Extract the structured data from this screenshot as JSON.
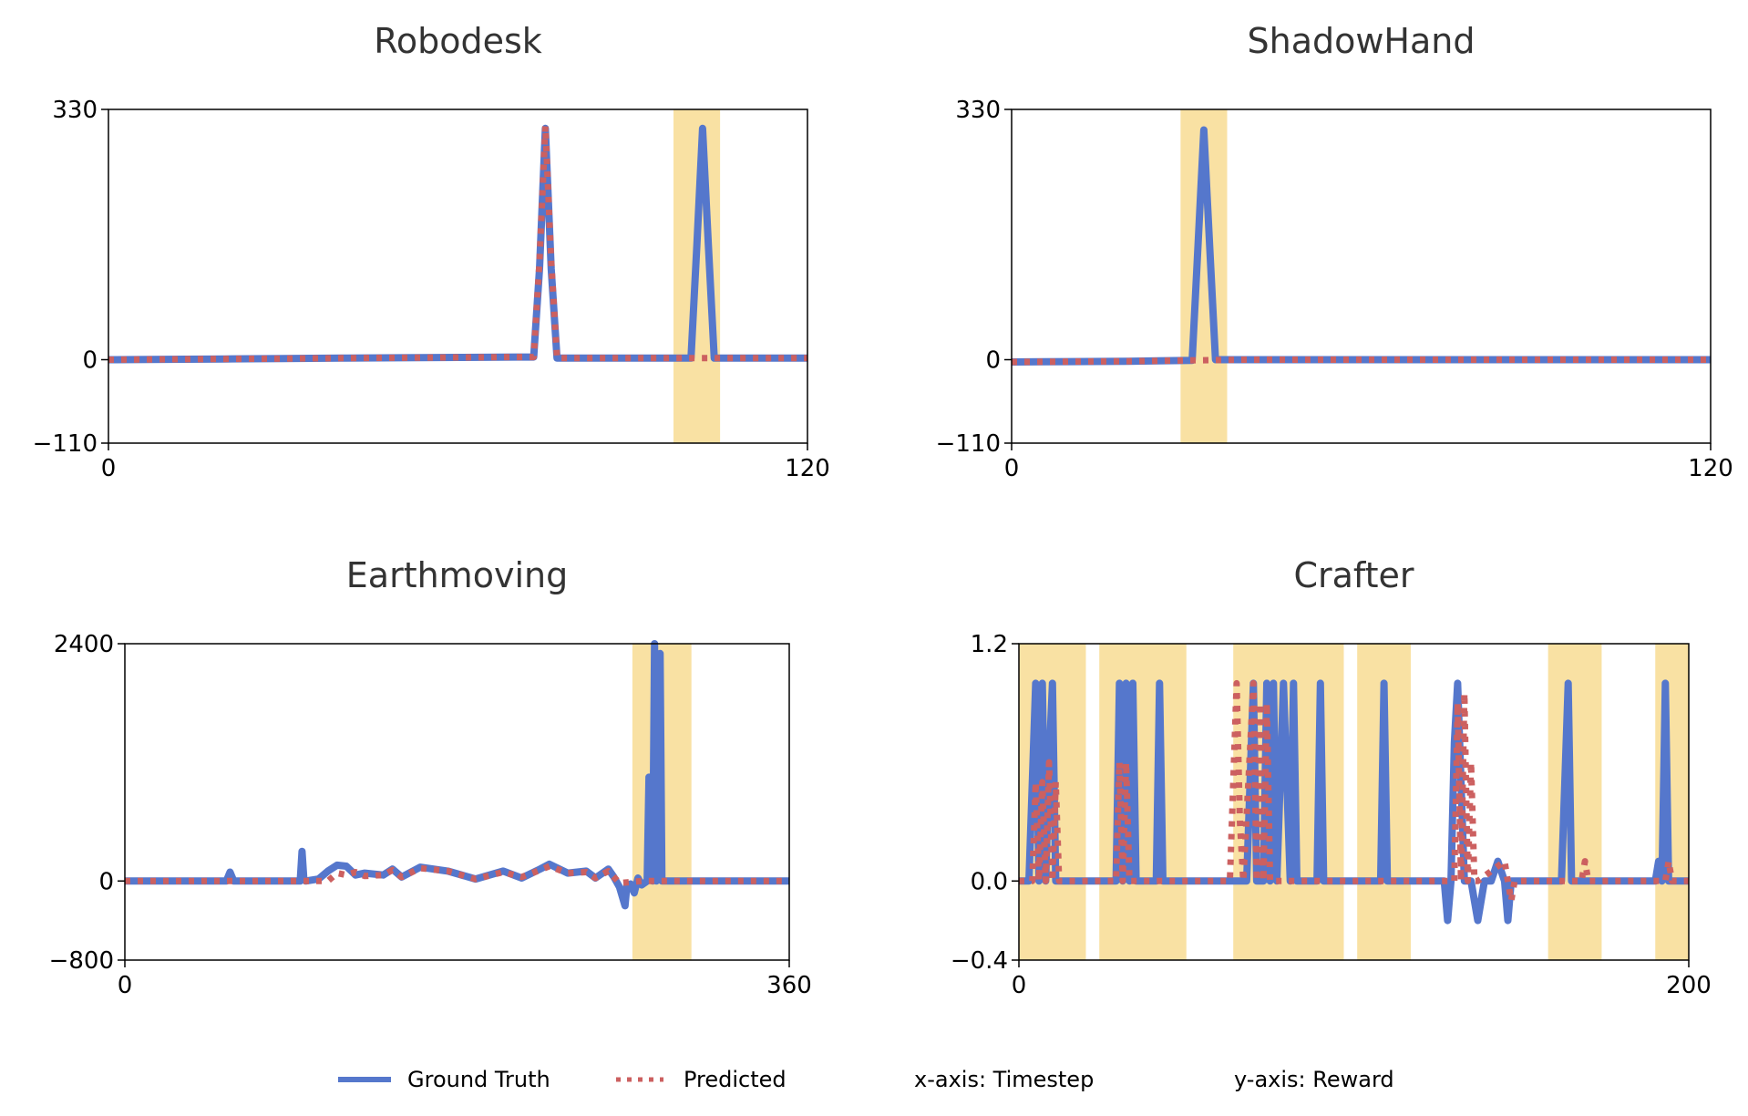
{
  "colors": {
    "ground_truth": "#5577cc",
    "predicted": "#cc6060",
    "highlight": "#f9e1a3",
    "axis": "#000000",
    "title": "#333333"
  },
  "legend": {
    "ground_truth": "Ground Truth",
    "predicted": "Predicted",
    "x_axis_note": "x-axis: Timestep",
    "y_axis_note": "y-axis: Reward"
  },
  "chart_data": [
    {
      "type": "line",
      "title": "Robodesk",
      "xlim": [
        0,
        120
      ],
      "ylim": [
        -110,
        330
      ],
      "xticks": [
        0,
        120
      ],
      "yticks": [
        -110,
        0,
        330
      ],
      "ytick_labels": [
        "−110",
        "0",
        "330"
      ],
      "highlight_spans": [
        [
          97,
          105
        ]
      ],
      "series": [
        {
          "name": "Ground Truth",
          "style": "solid",
          "x": [
            0,
            10,
            20,
            30,
            40,
            50,
            60,
            70,
            73,
            74,
            75,
            76,
            77,
            80,
            90,
            100,
            101,
            102,
            103,
            104,
            110,
            120
          ],
          "y": [
            0,
            0.5,
            1,
            1.5,
            2,
            2.5,
            3,
            3.5,
            3.5,
            120,
            305,
            120,
            2,
            2,
            2,
            2,
            150,
            305,
            150,
            2,
            2,
            2
          ]
        },
        {
          "name": "Predicted",
          "style": "dotted",
          "x": [
            0,
            10,
            20,
            30,
            40,
            50,
            60,
            70,
            73,
            74,
            75,
            76,
            77,
            80,
            90,
            100,
            110,
            120
          ],
          "y": [
            0,
            0.5,
            1,
            1.5,
            2,
            2.5,
            3,
            3.5,
            3.5,
            130,
            308,
            130,
            2,
            2,
            2,
            2,
            2,
            2
          ]
        }
      ]
    },
    {
      "type": "line",
      "title": "ShadowHand",
      "xlim": [
        0,
        120
      ],
      "ylim": [
        -110,
        330
      ],
      "xticks": [
        0,
        120
      ],
      "yticks": [
        -110,
        0,
        330
      ],
      "ytick_labels": [
        "−110",
        "0",
        "330"
      ],
      "highlight_spans": [
        [
          29,
          37
        ]
      ],
      "series": [
        {
          "name": "Ground Truth",
          "style": "solid",
          "x": [
            0,
            10,
            20,
            31,
            32,
            33,
            34,
            35,
            40,
            60,
            80,
            100,
            120
          ],
          "y": [
            -3,
            -2.5,
            -2,
            -1,
            150,
            303,
            150,
            0,
            0,
            0,
            0,
            0,
            0
          ]
        },
        {
          "name": "Predicted",
          "style": "dotted",
          "x": [
            0,
            10,
            20,
            30,
            40,
            60,
            80,
            100,
            120
          ],
          "y": [
            -3,
            -2.5,
            -2,
            -1,
            0,
            0,
            0,
            0,
            0
          ]
        }
      ]
    },
    {
      "type": "line",
      "title": "Earthmoving",
      "xlim": [
        0,
        360
      ],
      "ylim": [
        -800,
        2400
      ],
      "xticks": [
        0,
        360
      ],
      "yticks": [
        -800,
        0,
        2400
      ],
      "ytick_labels": [
        "−800",
        "0",
        "2400"
      ],
      "highlight_spans": [
        [
          275,
          307
        ]
      ],
      "series": [
        {
          "name": "Ground Truth",
          "style": "solid",
          "x": [
            0,
            55,
            57,
            59,
            95,
            96,
            97,
            98,
            105,
            110,
            115,
            120,
            125,
            130,
            140,
            145,
            150,
            160,
            175,
            190,
            205,
            215,
            225,
            230,
            240,
            250,
            255,
            262,
            265,
            268,
            271,
            272,
            274,
            276,
            278,
            280,
            283,
            284,
            286,
            287,
            288,
            290,
            291,
            300,
            310,
            360
          ],
          "y": [
            0,
            0,
            90,
            0,
            0,
            300,
            20,
            0,
            20,
            100,
            160,
            150,
            60,
            80,
            60,
            120,
            40,
            140,
            100,
            20,
            100,
            30,
            120,
            170,
            80,
            100,
            30,
            120,
            40,
            -60,
            -250,
            -50,
            -30,
            -120,
            30,
            -40,
            0,
            1050,
            0,
            2400,
            0,
            2300,
            0,
            0,
            0,
            0
          ]
        },
        {
          "name": "Predicted",
          "style": "dotted",
          "x": [
            0,
            110,
            115,
            120,
            125,
            130,
            140,
            145,
            150,
            160,
            175,
            190,
            205,
            215,
            225,
            230,
            240,
            250,
            255,
            262,
            265,
            268,
            275,
            280,
            290,
            300,
            360
          ],
          "y": [
            0,
            0,
            80,
            60,
            90,
            50,
            60,
            110,
            40,
            130,
            100,
            20,
            90,
            40,
            110,
            150,
            80,
            90,
            30,
            100,
            40,
            -20,
            -10,
            0,
            0,
            0,
            0
          ]
        }
      ]
    },
    {
      "type": "line",
      "title": "Crafter",
      "xlim": [
        0,
        200
      ],
      "ylim": [
        -0.4,
        1.2
      ],
      "xticks": [
        0,
        200
      ],
      "yticks": [
        -0.4,
        0.0,
        1.2
      ],
      "ytick_labels": [
        "−0.4",
        "0.0",
        "1.2"
      ],
      "highlight_spans": [
        [
          0,
          20
        ],
        [
          24,
          50
        ],
        [
          64,
          97
        ],
        [
          101,
          117
        ],
        [
          158,
          174
        ],
        [
          190,
          200
        ]
      ],
      "series": [
        {
          "name": "Ground Truth",
          "style": "solid",
          "x": [
            0,
            3,
            5,
            6,
            7,
            8,
            9,
            10,
            11,
            12,
            29,
            30,
            31,
            32,
            33,
            34,
            35,
            36,
            41,
            42,
            43,
            68,
            70,
            71,
            72,
            73,
            74,
            75,
            76,
            77,
            79,
            81,
            82,
            83,
            89,
            90,
            91,
            108,
            109,
            110,
            127,
            128,
            129,
            130,
            131,
            133,
            135,
            137,
            139,
            141,
            143,
            145,
            146,
            147,
            148,
            162,
            164,
            165,
            166,
            190,
            191,
            192,
            193,
            194,
            200
          ],
          "y": [
            0,
            0,
            1.0,
            0,
            1.0,
            0,
            0.6,
            1.0,
            0,
            0,
            0,
            1.0,
            0,
            1.0,
            0,
            1.0,
            0,
            0,
            0,
            1.0,
            0,
            0,
            1.0,
            0,
            0,
            0,
            1.0,
            0,
            1.0,
            0,
            1.0,
            0,
            1.0,
            0,
            0,
            1.0,
            0,
            0,
            1.0,
            0,
            0,
            -0.2,
            0,
            0.7,
            1.0,
            0,
            0,
            -0.2,
            0,
            0,
            0.1,
            0,
            -0.2,
            0,
            0,
            0,
            1.0,
            0,
            0,
            0,
            0.1,
            0,
            1.0,
            0,
            0
          ]
        },
        {
          "name": "Predicted",
          "style": "dotted",
          "x": [
            0,
            4,
            5,
            6,
            7,
            8,
            9,
            10,
            11,
            12,
            29,
            30,
            31,
            32,
            33,
            63,
            64,
            65,
            66,
            67,
            70,
            71,
            72,
            73,
            74,
            75,
            76,
            130,
            131,
            132,
            133,
            134,
            135,
            136,
            137,
            145,
            146,
            147,
            148,
            168,
            169,
            170,
            171,
            193,
            194,
            195,
            200
          ],
          "y": [
            0,
            0,
            0.5,
            0,
            0.5,
            0,
            0.6,
            0,
            0.5,
            0,
            0,
            0.6,
            0,
            0.6,
            0,
            0,
            0.5,
            1.0,
            0.3,
            0,
            1.0,
            0,
            0.9,
            0,
            0.9,
            0,
            0,
            0,
            0.9,
            0,
            0.95,
            0,
            0.6,
            0,
            0,
            0.1,
            0,
            -0.1,
            0,
            0,
            0.1,
            0,
            0,
            0,
            0.1,
            0,
            0
          ]
        }
      ]
    }
  ]
}
